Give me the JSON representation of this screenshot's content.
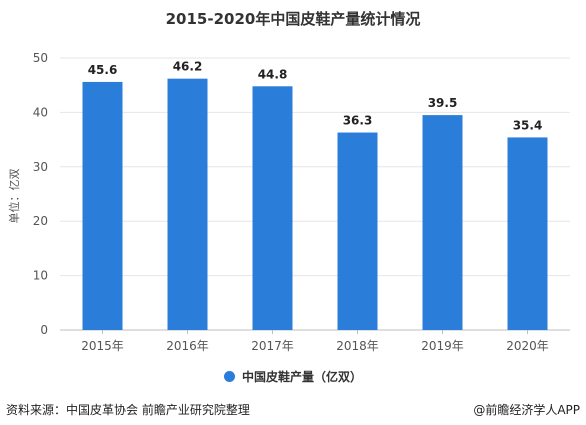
{
  "chart_data": {
    "type": "bar",
    "title": "2015-2020年中国皮鞋产量统计情况",
    "ylabel": "单位：亿双",
    "categories": [
      "2015年",
      "2016年",
      "2017年",
      "2018年",
      "2019年",
      "2020年"
    ],
    "series": [
      {
        "name": "中国皮鞋产量（亿双）",
        "values": [
          45.6,
          46.2,
          44.8,
          36.3,
          39.5,
          35.4
        ],
        "color": "#2a7dd8"
      }
    ],
    "ylim": [
      0,
      50
    ],
    "yticks": [
      0,
      10,
      20,
      30,
      40,
      50
    ],
    "grid": true,
    "legend_position": "bottom-center"
  },
  "footer": {
    "source": "资料来源：中国皮革协会 前瞻产业研究院整理",
    "brand": "@前瞻经济学人APP"
  }
}
